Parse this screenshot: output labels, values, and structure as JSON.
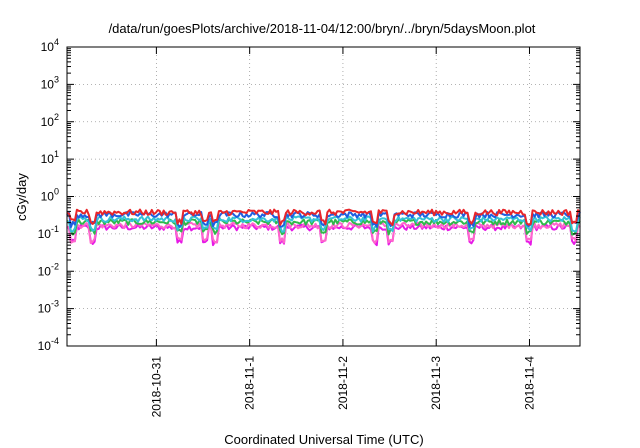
{
  "chart_data": {
    "type": "line",
    "title": "/data/run/goesPlots/archive/2018-11-04/12:00/bryn/../bryn/5daysMoon.plot",
    "xlabel": "Coordinated Universal Time (UTC)",
    "ylabel": "cGy/day",
    "yscale": "log",
    "ylim": [
      0.0001,
      10000
    ],
    "xlim": [
      "2018-10-30T01:00",
      "2018-11-04T13:00"
    ],
    "y_ticks": [
      {
        "base": "10",
        "exp": "-4"
      },
      {
        "base": "10",
        "exp": "-3"
      },
      {
        "base": "10",
        "exp": "-2"
      },
      {
        "base": "10",
        "exp": "-1"
      },
      {
        "base": "10",
        "exp": "0"
      },
      {
        "base": "10",
        "exp": "1"
      },
      {
        "base": "10",
        "exp": "2"
      },
      {
        "base": "10",
        "exp": "3"
      },
      {
        "base": "10",
        "exp": "4"
      }
    ],
    "x_ticks": [
      "2018-10-31",
      "2018-11-1",
      "2018-11-2",
      "2018-11-3",
      "2018-11-4"
    ],
    "grid": true,
    "series": [
      {
        "color": "#e8262b",
        "baseline": 0.38
      },
      {
        "color": "#1f5fe0",
        "baseline": 0.33
      },
      {
        "color": "#33c2d6",
        "baseline": 0.25
      },
      {
        "color": "#2fb94a",
        "baseline": 0.21
      },
      {
        "color": "#ff66cc",
        "baseline": 0.17
      },
      {
        "color": "#e619e6",
        "baseline": 0.15
      }
    ]
  }
}
